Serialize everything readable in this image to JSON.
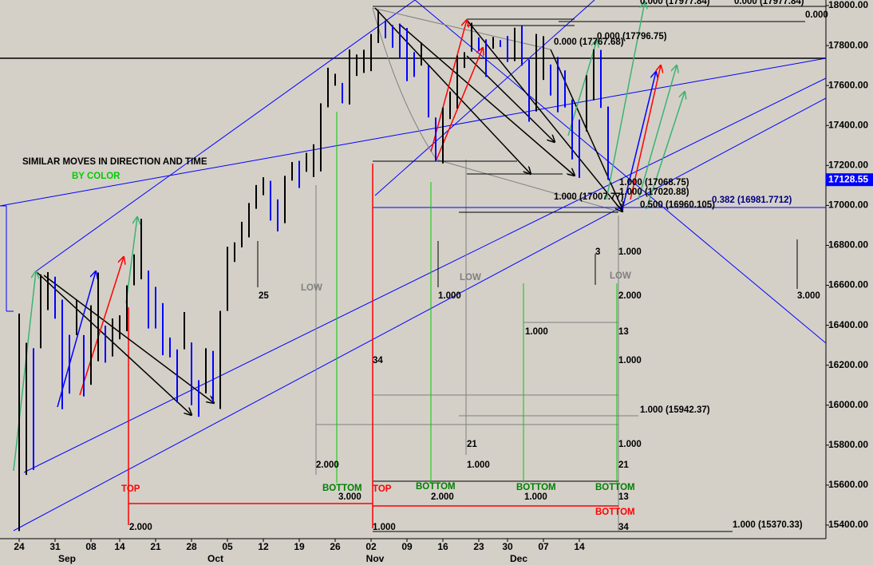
{
  "chart_data": {
    "type": "ohlc",
    "ylim": [
      15332,
      18028
    ],
    "yticks": [
      {
        "value": 18000,
        "label": "18000.00"
      },
      {
        "value": 17800,
        "label": "17800.00"
      },
      {
        "value": 17600,
        "label": "17600.00"
      },
      {
        "value": 17400,
        "label": "17400.00"
      },
      {
        "value": 17200,
        "label": "17200.00"
      },
      {
        "value": 17000,
        "label": "17000.00"
      },
      {
        "value": 16800,
        "label": "16800.00"
      },
      {
        "value": 16600,
        "label": "16600.00"
      },
      {
        "value": 16400,
        "label": "16400.00"
      },
      {
        "value": 16200,
        "label": "16200.00"
      },
      {
        "value": 16000,
        "label": "16000.00"
      },
      {
        "value": 15800,
        "label": "15800.00"
      },
      {
        "value": 15600,
        "label": "15600.00"
      },
      {
        "value": 15400,
        "label": "15400.00"
      }
    ],
    "categories": [
      "24",
      null,
      null,
      null,
      null,
      "31",
      null,
      null,
      null,
      null,
      "08",
      null,
      null,
      null,
      "14",
      null,
      null,
      null,
      null,
      "21",
      null,
      null,
      null,
      null,
      "28",
      null,
      null,
      null,
      null,
      "05",
      null,
      null,
      null,
      null,
      "12",
      null,
      null,
      null,
      null,
      "19",
      null,
      null,
      null,
      null,
      "26",
      null,
      null,
      null,
      null,
      "02",
      null,
      null,
      null,
      null,
      "09",
      null,
      null,
      null,
      null,
      "16",
      null,
      null,
      null,
      null,
      "23",
      null,
      null,
      null,
      "30",
      null,
      null,
      null,
      null,
      "07",
      null,
      null,
      null,
      null,
      "14",
      null,
      null,
      null,
      null
    ],
    "months": [
      "Sep",
      "Oct",
      "Nov",
      "Dec"
    ],
    "high": [
      16459,
      16312,
      16285,
      16655,
      16666,
      16643,
      16528,
      16352,
      16527,
      16351,
      16500,
      16664,
      16398,
      16434,
      16450,
      16600,
      16755,
      16933,
      16674,
      16592,
      16511,
      16339,
      16279,
      16466,
      16314,
      16125,
      16285,
      16272,
      16472,
      16793,
      16815,
      16918,
      17012,
      17102,
      17141,
      17123,
      17030,
      17148,
      17217,
      17223,
      17263,
      17306,
      17511,
      17689,
      17659,
      17613,
      17780,
      17755,
      17779,
      17858,
      17977,
      17926,
      17903,
      17910,
      17888,
      17767,
      17815,
      17700,
      17440,
      17490,
      17570,
      17750,
      17767,
      17914,
      17841,
      17831,
      17843,
      17827,
      17848,
      17889,
      17899,
      17730,
      17858,
      17847,
      17705,
      17743,
      17676,
      17530,
      17430,
      17651,
      17781,
      17778,
      17495
    ],
    "low": [
      15370,
      15651,
      15676,
      16285,
      16476,
      16433,
      15980,
      16058,
      16351,
      16044,
      16102,
      16220,
      16213,
      16244,
      16330,
      16370,
      16600,
      16630,
      16384,
      16384,
      16250,
      16239,
      16013,
      16280,
      16000,
      15942,
      16059,
      16014,
      15981,
      16472,
      16717,
      16790,
      16840,
      16983,
      17051,
      16924,
      16870,
      16911,
      17124,
      17087,
      17168,
      17142,
      17170,
      17491,
      17599,
      17511,
      17505,
      17648,
      17663,
      17672,
      17813,
      17836,
      17789,
      17735,
      17622,
      17643,
      17700,
      17440,
      17221,
      17210,
      17432,
      17485,
      17688,
      17770,
      17776,
      17643,
      17784,
      17793,
      17718,
      17722,
      17699,
      17419,
      17470,
      17628,
      17550,
      17466,
      17490,
      17230,
      17138,
      17370,
      17526,
      17488,
      17128
    ],
    "up_color": "#000000",
    "down_color": "#0000ff",
    "last_price": {
      "value": 17128.55,
      "label": "17128.55"
    },
    "annotations": [
      {
        "text": "SIMILAR MOVES IN DIRECTION  AND TIME",
        "color": "#000000"
      },
      {
        "text": "BY COLOR",
        "color": "#00cc00"
      },
      {
        "text": "0.000 (17977.84)",
        "color": "#000000"
      },
      {
        "text": "0.000 (17977.84)",
        "color": "#000000"
      },
      {
        "text": "0.000",
        "color": "#000000"
      },
      {
        "text": "0.000 (17796.75)",
        "color": "#000000"
      },
      {
        "text": "0.000 (17767.68)",
        "color": "#000000"
      },
      {
        "text": "1.000 (17068.75)",
        "color": "#000000"
      },
      {
        "text": "1.000 (17020.88)",
        "color": "#000000"
      },
      {
        "text": "1.000 (17007.77)",
        "color": "#000000"
      },
      {
        "text": "0.500 (16960.105)",
        "color": "#000000"
      },
      {
        "text": "0.382 (16981.7712)",
        "color": "#000080"
      },
      {
        "text": "25",
        "color": "#000000"
      },
      {
        "text": "LOW",
        "color": "#808080"
      },
      {
        "text": "1.000",
        "color": "#000000"
      },
      {
        "text": "LOW",
        "color": "#808080"
      },
      {
        "text": "3",
        "color": "#000000"
      },
      {
        "text": "LOW",
        "color": "#808080"
      },
      {
        "text": "1.000",
        "color": "#000000"
      },
      {
        "text": "2.000",
        "color": "#000000"
      },
      {
        "text": "1.000",
        "color": "#000000"
      },
      {
        "text": "13",
        "color": "#000000"
      },
      {
        "text": "34",
        "color": "#000000"
      },
      {
        "text": "1.000",
        "color": "#000000"
      },
      {
        "text": "3.000",
        "color": "#000000"
      },
      {
        "text": "1.000 (15942.37)",
        "color": "#000000"
      },
      {
        "text": "21",
        "color": "#000000"
      },
      {
        "text": "1.000",
        "color": "#000000"
      },
      {
        "text": "2.000",
        "color": "#000000"
      },
      {
        "text": "1.000",
        "color": "#000000"
      },
      {
        "text": "21",
        "color": "#000000"
      },
      {
        "text": "TOP",
        "color": "#ff0000"
      },
      {
        "text": "BOTTOM",
        "color": "#008000"
      },
      {
        "text": "TOP",
        "color": "#ff0000"
      },
      {
        "text": "BOTTOM",
        "color": "#008000"
      },
      {
        "text": "BOTTOM",
        "color": "#008000"
      },
      {
        "text": "BOTTOM",
        "color": "#008000"
      },
      {
        "text": "3.000",
        "color": "#000000"
      },
      {
        "text": "2.000",
        "color": "#000000"
      },
      {
        "text": "1.000",
        "color": "#000000"
      },
      {
        "text": "13",
        "color": "#000000"
      },
      {
        "text": "BOTTOM",
        "color": "#ff0000"
      },
      {
        "text": "2.000",
        "color": "#000000"
      },
      {
        "text": "1.000",
        "color": "#000000"
      },
      {
        "text": "34",
        "color": "#000000"
      },
      {
        "text": "1.000 (15370.33)",
        "color": "#000000"
      }
    ]
  }
}
